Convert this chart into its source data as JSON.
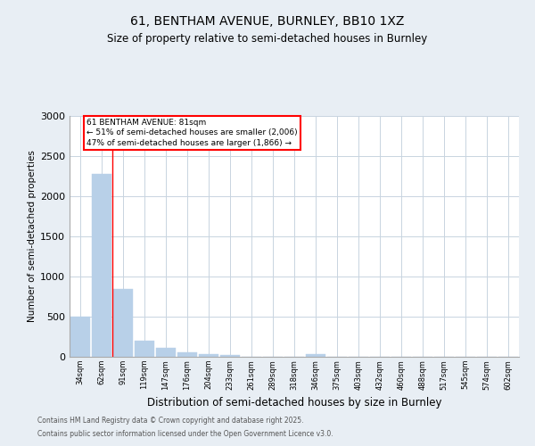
{
  "title_line1": "61, BENTHAM AVENUE, BURNLEY, BB10 1XZ",
  "title_line2": "Size of property relative to semi-detached houses in Burnley",
  "xlabel": "Distribution of semi-detached houses by size in Burnley",
  "ylabel": "Number of semi-detached properties",
  "categories": [
    "34sqm",
    "62sqm",
    "91sqm",
    "119sqm",
    "147sqm",
    "176sqm",
    "204sqm",
    "233sqm",
    "261sqm",
    "289sqm",
    "318sqm",
    "346sqm",
    "375sqm",
    "403sqm",
    "432sqm",
    "460sqm",
    "488sqm",
    "517sqm",
    "545sqm",
    "574sqm",
    "602sqm"
  ],
  "values": [
    500,
    2280,
    840,
    200,
    110,
    60,
    30,
    20,
    5,
    0,
    0,
    30,
    0,
    0,
    0,
    0,
    0,
    0,
    0,
    0,
    0
  ],
  "bar_color": "#b8d0e8",
  "bar_edgecolor": "#b8d0e8",
  "ylim": [
    0,
    3000
  ],
  "yticks": [
    0,
    500,
    1000,
    1500,
    2000,
    2500,
    3000
  ],
  "redline_bin": 2,
  "annotation_title": "61 BENTHAM AVENUE: 81sqm",
  "annotation_line1": "← 51% of semi-detached houses are smaller (2,006)",
  "annotation_line2": "47% of semi-detached houses are larger (1,866) →",
  "footer_line1": "Contains HM Land Registry data © Crown copyright and database right 2025.",
  "footer_line2": "Contains public sector information licensed under the Open Government Licence v3.0.",
  "bg_color": "#e8eef4",
  "plot_bg_color": "#ffffff",
  "grid_color": "#c8d4e0"
}
